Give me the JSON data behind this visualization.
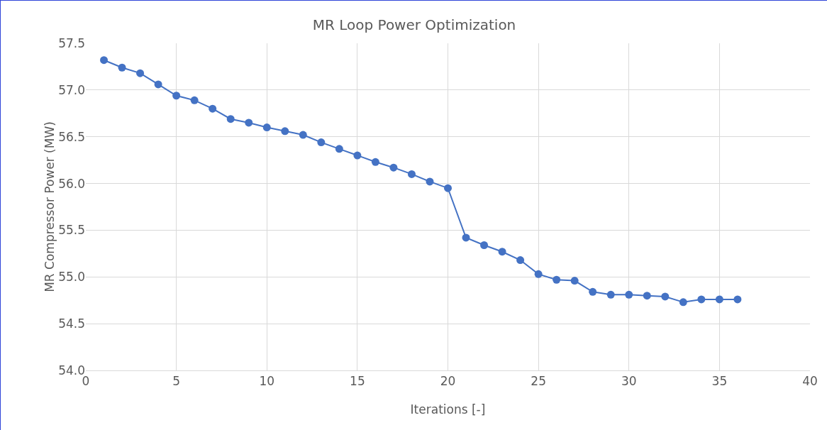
{
  "chart_data": {
    "type": "line",
    "title": "MR Loop Power Optimization",
    "xlabel": "Iterations [-]",
    "ylabel": "MR Compressor Power (MW)",
    "x": [
      1,
      2,
      3,
      4,
      5,
      6,
      7,
      8,
      9,
      10,
      11,
      12,
      13,
      14,
      15,
      16,
      17,
      18,
      19,
      20,
      21,
      22,
      23,
      24,
      25,
      26,
      27,
      28,
      29,
      30,
      31,
      32,
      33,
      34,
      35,
      36
    ],
    "series": [
      {
        "color": "#4472c4",
        "values": [
          57.32,
          57.24,
          57.18,
          57.06,
          56.94,
          56.89,
          56.8,
          56.69,
          56.65,
          56.6,
          56.56,
          56.52,
          56.44,
          56.37,
          56.3,
          56.23,
          56.17,
          56.1,
          56.02,
          55.95,
          55.42,
          55.34,
          55.27,
          55.18,
          55.03,
          54.97,
          54.96,
          54.84,
          54.81,
          54.81,
          54.8,
          54.79,
          54.73,
          54.76,
          54.76,
          54.76
        ]
      }
    ],
    "xlim": [
      0,
      40
    ],
    "xticks": [
      0,
      5,
      10,
      15,
      20,
      25,
      30,
      35,
      40
    ],
    "ylim": [
      54.0,
      57.5
    ],
    "yticks": [
      {
        "value": 54.0,
        "label": "54.0"
      },
      {
        "value": 54.5,
        "label": "54.5"
      },
      {
        "value": 55.0,
        "label": "55.0"
      },
      {
        "value": 55.5,
        "label": "55.5"
      },
      {
        "value": 56.0,
        "label": "56.0"
      },
      {
        "value": 56.5,
        "label": "56.5"
      },
      {
        "value": 57.0,
        "label": "57.0"
      },
      {
        "value": 57.5,
        "label": "57.5"
      }
    ],
    "grid": true,
    "marker": "circle",
    "line_style": "solid"
  }
}
